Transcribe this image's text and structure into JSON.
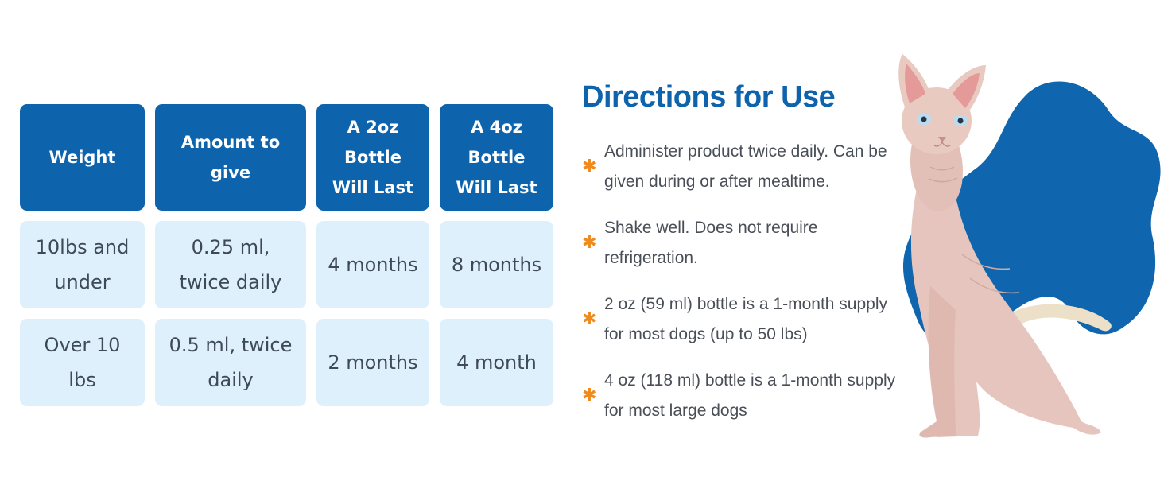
{
  "table": {
    "headers": [
      "Weight",
      "Amount to give",
      "A 2oz Bottle Will Last",
      "A 4oz Bottle Will Last"
    ],
    "rows": [
      [
        "10lbs and under",
        "0.25 ml, twice daily",
        "4 months",
        "8 months"
      ],
      [
        "Over 10 lbs",
        "0.5 ml, twice daily",
        "2 months",
        "4 month"
      ]
    ]
  },
  "directions": {
    "title": "Directions for Use",
    "bullet_icon": "asterisk-icon",
    "bullet_color": "#f08a1c",
    "items": [
      "Administer product twice daily. Can be given during or after mealtime.",
      "Shake well. Does not require refrigeration.",
      "2 oz (59 ml) bottle is a 1-month supply for most dogs (up to 50 lbs)",
      "4 oz (118 ml) bottle is a 1-month supply for most large dogs"
    ]
  },
  "colors": {
    "header_blue": "#0d64ad",
    "cell_light_blue": "#dff0fd",
    "blob_blue": "#0f65ae",
    "cat_skin": "#e5c5bd"
  }
}
